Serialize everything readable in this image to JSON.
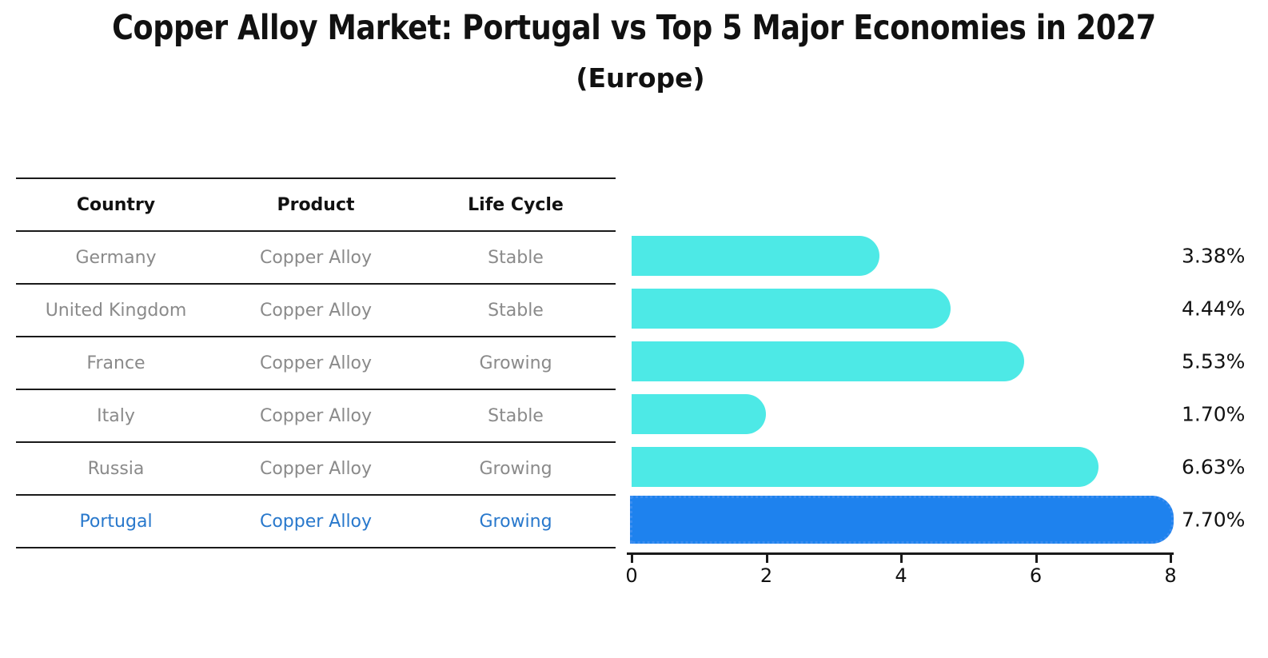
{
  "title": "Copper Alloy Market: Portugal vs Top 5 Major Economies in 2027",
  "subtitle": "(Europe)",
  "table": {
    "headers": [
      "Country",
      "Product",
      "Life Cycle"
    ],
    "rows": [
      {
        "cells": [
          "Germany",
          "Copper Alloy",
          "Stable"
        ],
        "highlight": false
      },
      {
        "cells": [
          "United Kingdom",
          "Copper Alloy",
          "Stable"
        ],
        "highlight": false
      },
      {
        "cells": [
          "France",
          "Copper Alloy",
          "Growing"
        ],
        "highlight": false
      },
      {
        "cells": [
          "Italy",
          "Copper Alloy",
          "Stable"
        ],
        "highlight": false
      },
      {
        "cells": [
          "Russia",
          "Copper Alloy",
          "Growing"
        ],
        "highlight": false
      },
      {
        "cells": [
          "Portugal",
          "Copper Alloy",
          "Growing"
        ],
        "highlight": true
      }
    ]
  },
  "chart_data": {
    "type": "bar",
    "orientation": "horizontal",
    "title": "Copper Alloy Market: Portugal vs Top 5 Major Economies in 2027",
    "subtitle": "(Europe)",
    "categories": [
      "Germany",
      "United Kingdom",
      "France",
      "Italy",
      "Russia",
      "Portugal"
    ],
    "values": [
      3.38,
      4.44,
      5.53,
      1.7,
      6.63,
      7.7
    ],
    "value_labels": [
      "3.38%",
      "4.44%",
      "5.53%",
      "1.70%",
      "6.63%",
      "7.70%"
    ],
    "xlim": [
      0,
      8
    ],
    "x_ticks": [
      0,
      2,
      4,
      6,
      8
    ],
    "grid": false,
    "legend": "none",
    "highlight_index": 5,
    "highlight_category": "Portugal"
  },
  "colors": {
    "bar_color": "#4DE9E6",
    "highlight_bar_color": "#1E82EE",
    "highlight_bar_border": "#3B8DF0",
    "highlight_text_color": "#2878CC",
    "table_text_color": "#8A8A8A",
    "header_text_color": "#111111",
    "axis_color": "#1A1A1A"
  }
}
